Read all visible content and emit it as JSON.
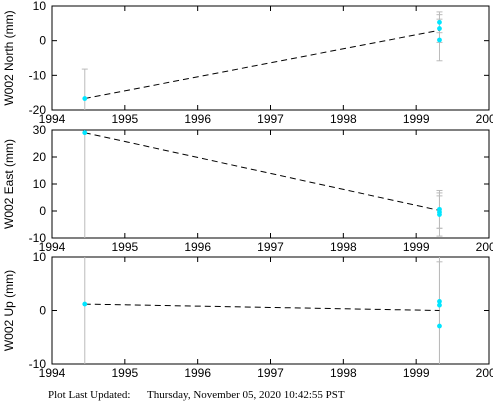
{
  "colors": {
    "point": "#00e5ff",
    "errorbar": "#bbbbbb",
    "fit_line": "#000000",
    "frame": "#000000"
  },
  "footer": {
    "label": "Plot Last Updated:",
    "value": "Thursday, November 05, 2020 10:42:55 PST"
  },
  "chart_data": [
    {
      "type": "scatter",
      "ylabel": "W002 North (mm)",
      "xlim": [
        1994,
        2000
      ],
      "ylim": [
        -20,
        10
      ],
      "xticks": [
        1994,
        1995,
        1996,
        1997,
        1998,
        1999,
        2000
      ],
      "yticks": [
        -20,
        -10,
        0,
        10
      ],
      "grid": false,
      "points": [
        {
          "x": 1994.45,
          "y": -16.7,
          "err": 8.5
        },
        {
          "x": 1999.32,
          "y": 5.3,
          "err": 3.0
        },
        {
          "x": 1999.32,
          "y": 3.5,
          "err": 4.0
        },
        {
          "x": 1999.32,
          "y": 0.2,
          "err": 6.0
        }
      ],
      "fit": {
        "x": [
          1994.45,
          1999.32
        ],
        "y": [
          -16.7,
          3.0
        ]
      }
    },
    {
      "type": "scatter",
      "ylabel": "W002 East (mm)",
      "xlim": [
        1994,
        2000
      ],
      "ylim": [
        -10,
        30
      ],
      "xticks": [
        1994,
        1995,
        1996,
        1997,
        1998,
        1999,
        2000
      ],
      "yticks": [
        -10,
        0,
        10,
        20,
        30
      ],
      "grid": false,
      "points": [
        {
          "x": 1994.45,
          "y": 29.0,
          "err": 40
        },
        {
          "x": 1999.32,
          "y": 0.6,
          "err": 7.0
        },
        {
          "x": 1999.32,
          "y": -0.4,
          "err": 6.0
        },
        {
          "x": 1999.32,
          "y": -1.3,
          "err": 8.0
        }
      ],
      "fit": {
        "x": [
          1994.45,
          1999.32
        ],
        "y": [
          29.0,
          0.2
        ]
      }
    },
    {
      "type": "scatter",
      "ylabel": "W002 Up (mm)",
      "xlim": [
        1994,
        2000
      ],
      "ylim": [
        -10,
        10
      ],
      "xticks": [
        1994,
        1995,
        1996,
        1997,
        1998,
        1999,
        2000
      ],
      "yticks": [
        -10,
        0,
        10
      ],
      "grid": false,
      "points": [
        {
          "x": 1994.45,
          "y": 1.2,
          "err": 15
        },
        {
          "x": 1999.32,
          "y": 1.7,
          "err": 12
        },
        {
          "x": 1999.32,
          "y": 1.0,
          "err": 12
        },
        {
          "x": 1999.32,
          "y": -2.9,
          "err": 12
        }
      ],
      "fit": {
        "x": [
          1994.45,
          1999.32
        ],
        "y": [
          1.2,
          0.0
        ]
      }
    }
  ]
}
